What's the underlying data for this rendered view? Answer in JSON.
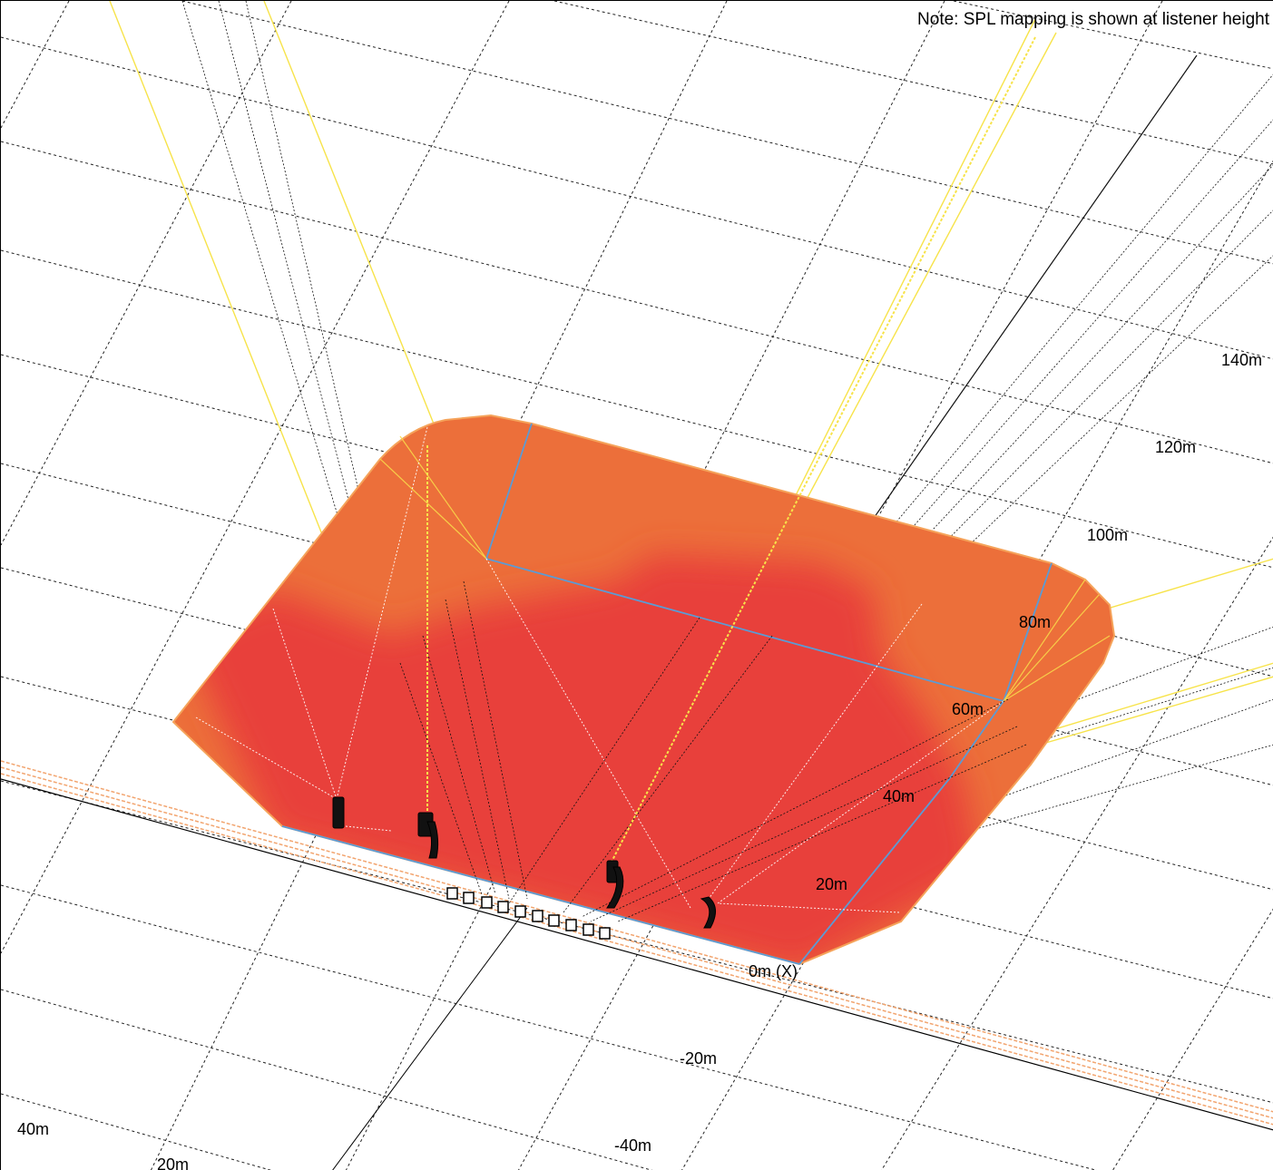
{
  "note": "Note: SPL mapping is shown at listener height",
  "axis_labels": {
    "y_140": "140m",
    "y_120": "120m",
    "y_100": "100m",
    "y_80": "80m",
    "y_60": "60m",
    "y_40": "40m",
    "y_20": "20m",
    "origin": "0m (X)",
    "y_neg20": "-20m",
    "y_neg40": "-40m",
    "x_40": "40m",
    "x_20": "20m"
  },
  "colors": {
    "background": "#ffffff",
    "grid": "#222222",
    "spl_high": "#e8413a",
    "spl_mid": "#ec6f3a",
    "area_outline": "#f5a35a",
    "zone_outline": "#5b9bd5",
    "ray_yellow": "#f7e34a",
    "ray_black": "#1a1a1a",
    "stage_line": "#f2a46e"
  }
}
